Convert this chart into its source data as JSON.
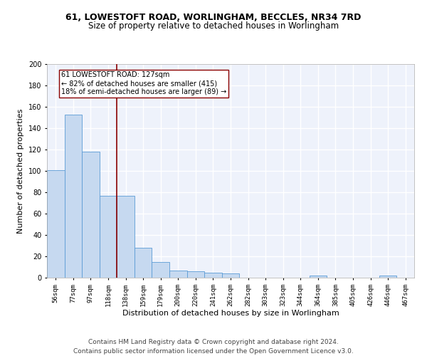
{
  "title1": "61, LOWESTOFT ROAD, WORLINGHAM, BECCLES, NR34 7RD",
  "title2": "Size of property relative to detached houses in Worlingham",
  "xlabel": "Distribution of detached houses by size in Worlingham",
  "ylabel": "Number of detached properties",
  "categories": [
    "56sqm",
    "77sqm",
    "97sqm",
    "118sqm",
    "138sqm",
    "159sqm",
    "179sqm",
    "200sqm",
    "220sqm",
    "241sqm",
    "262sqm",
    "282sqm",
    "303sqm",
    "323sqm",
    "344sqm",
    "364sqm",
    "385sqm",
    "405sqm",
    "426sqm",
    "446sqm",
    "467sqm"
  ],
  "values": [
    101,
    153,
    118,
    77,
    77,
    28,
    15,
    7,
    6,
    5,
    4,
    0,
    0,
    0,
    0,
    2,
    0,
    0,
    0,
    2,
    0
  ],
  "bar_color": "#c6d9f0",
  "bar_edge_color": "#5b9bd5",
  "vline_x": 3.5,
  "vline_color": "#8b0000",
  "annotation_text": "61 LOWESTOFT ROAD: 127sqm\n← 82% of detached houses are smaller (415)\n18% of semi-detached houses are larger (89) →",
  "annotation_box_color": "white",
  "annotation_box_edge": "#8b0000",
  "ylim": [
    0,
    200
  ],
  "yticks": [
    0,
    20,
    40,
    60,
    80,
    100,
    120,
    140,
    160,
    180,
    200
  ],
  "footer": "Contains HM Land Registry data © Crown copyright and database right 2024.\nContains public sector information licensed under the Open Government Licence v3.0.",
  "bg_color": "#eef2fb",
  "grid_color": "#ffffff",
  "title_fontsize": 9,
  "subtitle_fontsize": 8.5,
  "tick_fontsize": 6.5,
  "ylabel_fontsize": 8,
  "xlabel_fontsize": 8,
  "footer_fontsize": 6.5,
  "annot_fontsize": 7
}
